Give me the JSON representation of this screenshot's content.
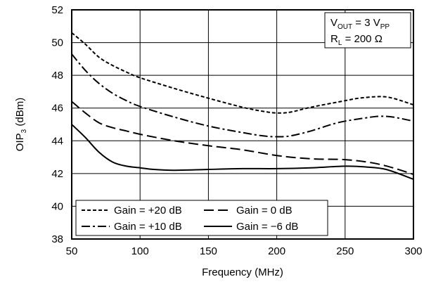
{
  "chart_data": {
    "type": "line",
    "title": "",
    "xlabel": "Frequency (MHz)",
    "ylabel": {
      "main": "OIP",
      "sub": "3",
      "tail": " (dBm)"
    },
    "xlim": [
      50,
      300
    ],
    "ylim": [
      38,
      52
    ],
    "xticks": [
      50,
      100,
      150,
      200,
      250,
      300
    ],
    "yticks": [
      38,
      40,
      42,
      44,
      46,
      48,
      50,
      52
    ],
    "grid": true,
    "legend_position": "bottom-left",
    "annotation": {
      "line1": {
        "a": "V",
        "a_sub": "OUT",
        "b": " = 3 V",
        "b_sub": "PP"
      },
      "line2": {
        "a": "R",
        "a_sub": "L",
        "b": " = 200 Ω"
      }
    },
    "series": [
      {
        "name": "Gain = +20 dB",
        "dash": "short-dash",
        "points": [
          [
            50,
            50.6
          ],
          [
            60,
            49.9
          ],
          [
            70,
            49.1
          ],
          [
            80,
            48.6
          ],
          [
            90,
            48.2
          ],
          [
            100,
            47.85
          ],
          [
            125,
            47.2
          ],
          [
            150,
            46.6
          ],
          [
            175,
            46.05
          ],
          [
            190,
            45.8
          ],
          [
            200,
            45.7
          ],
          [
            210,
            45.75
          ],
          [
            225,
            46.05
          ],
          [
            250,
            46.45
          ],
          [
            260,
            46.6
          ],
          [
            275,
            46.7
          ],
          [
            285,
            46.6
          ],
          [
            300,
            46.2
          ]
        ]
      },
      {
        "name": "Gain = 0 dB",
        "dash": "long-dash",
        "points": [
          [
            50,
            46.4
          ],
          [
            60,
            45.7
          ],
          [
            70,
            45.1
          ],
          [
            80,
            44.8
          ],
          [
            90,
            44.6
          ],
          [
            100,
            44.4
          ],
          [
            125,
            44.0
          ],
          [
            150,
            43.7
          ],
          [
            175,
            43.45
          ],
          [
            200,
            43.1
          ],
          [
            225,
            42.9
          ],
          [
            250,
            42.85
          ],
          [
            270,
            42.65
          ],
          [
            285,
            42.35
          ],
          [
            300,
            41.95
          ]
        ]
      },
      {
        "name": "Gain = +10 dB",
        "dash": "dash-dot",
        "points": [
          [
            50,
            49.3
          ],
          [
            60,
            48.3
          ],
          [
            70,
            47.5
          ],
          [
            80,
            46.9
          ],
          [
            90,
            46.45
          ],
          [
            100,
            46.1
          ],
          [
            125,
            45.45
          ],
          [
            150,
            44.9
          ],
          [
            175,
            44.5
          ],
          [
            190,
            44.3
          ],
          [
            200,
            44.25
          ],
          [
            210,
            44.3
          ],
          [
            225,
            44.6
          ],
          [
            240,
            45.0
          ],
          [
            250,
            45.2
          ],
          [
            265,
            45.4
          ],
          [
            275,
            45.5
          ],
          [
            285,
            45.45
          ],
          [
            300,
            45.2
          ]
        ]
      },
      {
        "name": "Gain = −6 dB",
        "dash": "solid",
        "points": [
          [
            50,
            45.0
          ],
          [
            60,
            44.2
          ],
          [
            70,
            43.3
          ],
          [
            80,
            42.7
          ],
          [
            90,
            42.45
          ],
          [
            100,
            42.35
          ],
          [
            110,
            42.25
          ],
          [
            125,
            42.2
          ],
          [
            150,
            42.25
          ],
          [
            175,
            42.3
          ],
          [
            200,
            42.3
          ],
          [
            225,
            42.35
          ],
          [
            250,
            42.45
          ],
          [
            265,
            42.4
          ],
          [
            280,
            42.25
          ],
          [
            300,
            41.65
          ]
        ]
      }
    ]
  }
}
